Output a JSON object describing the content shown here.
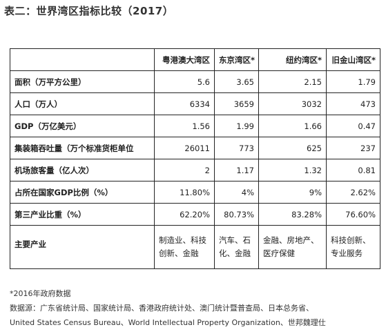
{
  "title": "表二：世界湾区指标比较（2017）",
  "table": {
    "headers": [
      "粤港澳大湾区",
      "东京湾区*",
      "纽约湾区*",
      "旧金山湾区*"
    ],
    "rows": [
      {
        "label": "面积（万平方公里）",
        "values": [
          "5.6",
          "3.65",
          "2.15",
          "1.79"
        ]
      },
      {
        "label": "人口（万人）",
        "values": [
          "6334",
          "3659",
          "3032",
          "473"
        ]
      },
      {
        "label": "GDP（万亿美元）",
        "values": [
          "1.56",
          "1.99",
          "1.66",
          "0.47"
        ]
      },
      {
        "label": "集装箱吞吐量（万个标准货柜单位",
        "values": [
          "26011",
          "773",
          "625",
          "237"
        ]
      },
      {
        "label": "机场旅客量（亿人次）",
        "values": [
          "2",
          "1.17",
          "1.32",
          "0.81"
        ]
      },
      {
        "label": "占所在国家GDP比例（%）",
        "values": [
          "11.80%",
          "4%",
          "9%",
          "2.62%"
        ]
      },
      {
        "label": "第三产业比重（%）",
        "values": [
          "62.20%",
          "80.73%",
          "83.28%",
          "76.60%"
        ]
      }
    ],
    "industry": {
      "label": "主要产业",
      "values": [
        "制造业、科技创新、金融",
        "汽车、石化、金融",
        "金融、房地产、医疗保健",
        "科技创新、专业服务"
      ]
    }
  },
  "notes": {
    "footnote": "*2016年政府数据",
    "sources_line1": "数据源：广东省统计局、国家统计局、香港政府统计处、澳门统计暨普查局、日本总务省、",
    "sources_line2": "United States Census Bureau、World Intellectual Property Organization、世邦魏理仕"
  }
}
